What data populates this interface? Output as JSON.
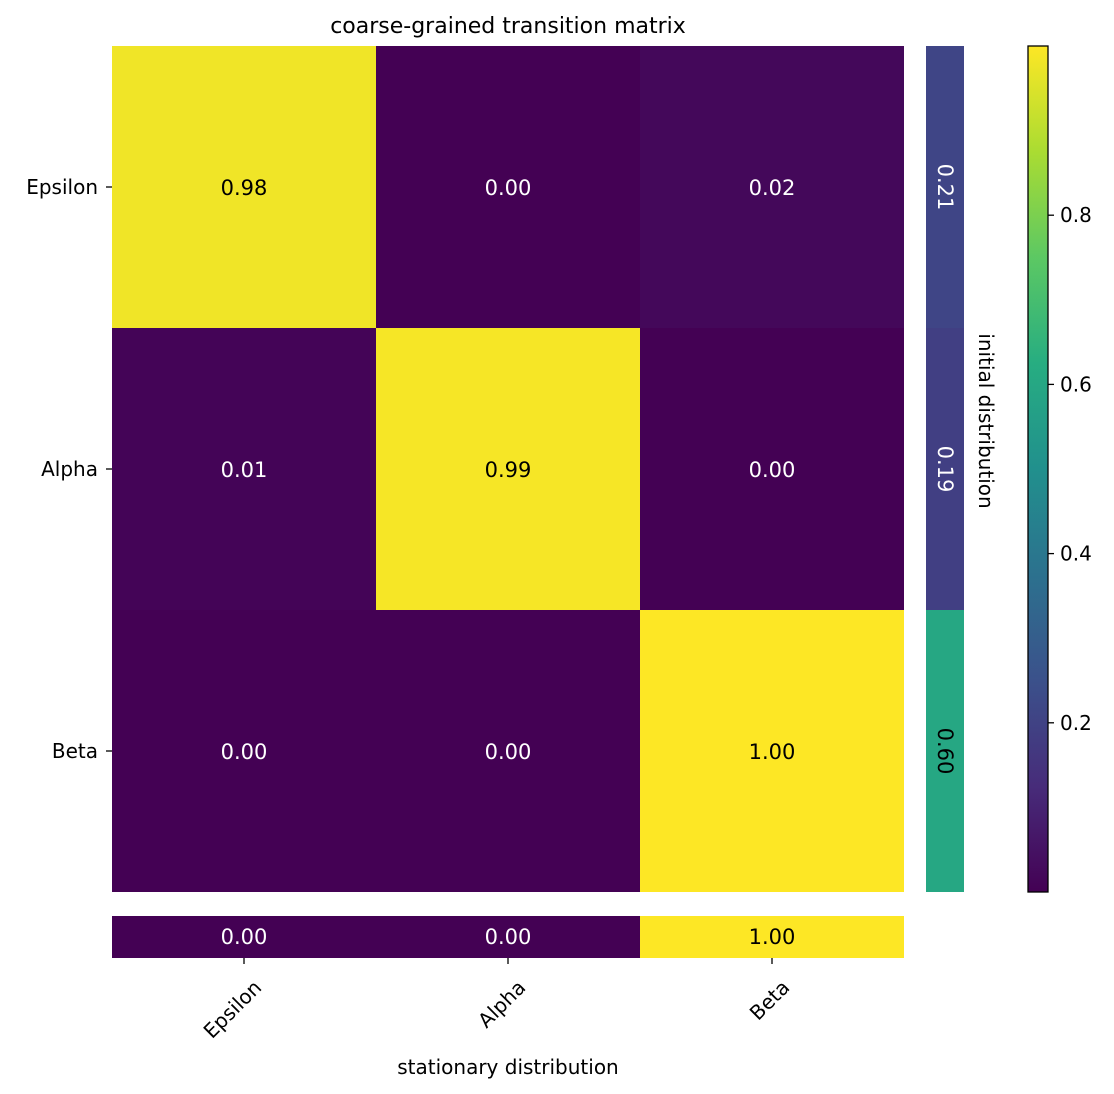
{
  "chart_data": {
    "type": "heatmap",
    "title": "coarse-grained transition matrix",
    "rows": [
      "Epsilon",
      "Alpha",
      "Beta"
    ],
    "columns": [
      "Epsilon",
      "Alpha",
      "Beta"
    ],
    "matrix": [
      [
        0.98,
        0.0,
        0.02
      ],
      [
        0.01,
        0.99,
        0.0
      ],
      [
        0.0,
        0.0,
        1.0
      ]
    ],
    "matrix_labels": [
      [
        "0.98",
        "0.00",
        "0.02"
      ],
      [
        "0.01",
        "0.99",
        "0.00"
      ],
      [
        "0.00",
        "0.00",
        "1.00"
      ]
    ],
    "initial_distribution": {
      "label": "initial distribution",
      "values": [
        0.21,
        0.19,
        0.6
      ],
      "labels": [
        "0.21",
        "0.19",
        "0.60"
      ]
    },
    "stationary_distribution": {
      "label": "stationary distribution",
      "values": [
        0.0,
        0.0,
        1.0
      ],
      "labels": [
        "0.00",
        "0.00",
        "1.00"
      ]
    },
    "colorbar": {
      "colormap": "viridis",
      "ticks": [
        "0.2",
        "0.4",
        "0.6",
        "0.8"
      ],
      "tick_values": [
        0.2,
        0.4,
        0.6,
        0.8
      ],
      "range": [
        0.0,
        1.0
      ]
    },
    "colors": {
      "low": "#440154",
      "high": "#fde725"
    }
  }
}
